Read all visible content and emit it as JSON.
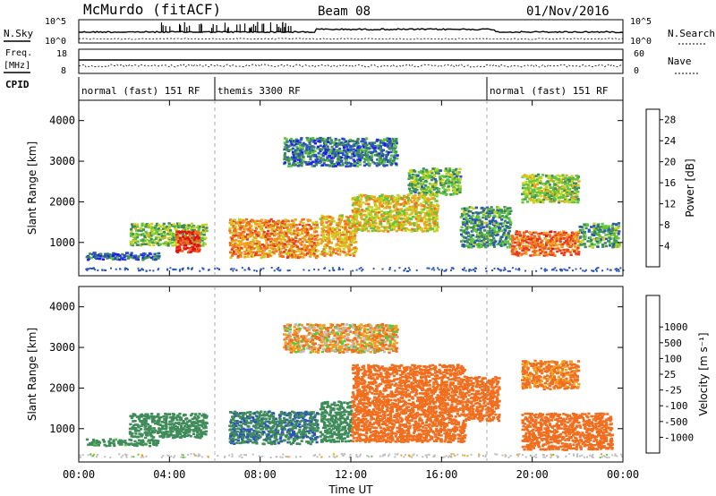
{
  "header": {
    "station": "McMurdo (fitACF)",
    "beam": "Beam 08",
    "date": "01/Nov/2016"
  },
  "strip_panels": {
    "nsky_label": "N.Sky",
    "nsky_ticks": [
      "10^5",
      "10^0"
    ],
    "nsearch_label": "N.Search",
    "nsearch_ticks": [
      "10^5",
      "10^0"
    ],
    "freq_label": [
      "Freq.",
      "[MHz]"
    ],
    "freq_ticks": [
      "18",
      "8"
    ],
    "nave_label": "Nave",
    "nave_ticks": [
      "60",
      "0"
    ],
    "cpid_label": "CPID",
    "cpid_segments": [
      {
        "label": "normal (fast) 151 RF",
        "start_hour": 0,
        "end_hour": 6
      },
      {
        "label": "themis 3300 RF",
        "start_hour": 6,
        "end_hour": 18
      },
      {
        "label": "normal (fast) 151 RF",
        "start_hour": 18,
        "end_hour": 24
      }
    ]
  },
  "colors": {
    "power": [
      "#1e1ef0",
      "#2c55b8",
      "#3f8c5a",
      "#5fc63c",
      "#c8d21e",
      "#f0a01e",
      "#f06e1e",
      "#e63c1e",
      "#e01010"
    ],
    "velocity": [
      "#e01010",
      "#e63c1e",
      "#f06e1e",
      "#f0a01e",
      "#c8d21e",
      "#bebebe",
      "#5fc63c",
      "#3f8c5a",
      "#2c55b8",
      "#1e1ef0"
    ]
  },
  "chart_data": [
    {
      "type": "heatmap",
      "panel": "power",
      "x_ticks": [
        "00:00",
        "04:00",
        "08:00",
        "12:00",
        "16:00",
        "20:00",
        "00:00"
      ],
      "xlim_hours": [
        0,
        24
      ],
      "ylabel": "Slant Range [km]",
      "ylim": [
        180,
        4500
      ],
      "y_ticks": [
        1000,
        2000,
        3000,
        4000
      ],
      "colorbar_label": "Power [dB]",
      "colorbar_ticks": [
        "4",
        "8",
        "12",
        "16",
        "20",
        "24",
        "28"
      ],
      "colorbar_range": [
        0,
        30
      ],
      "bands": [
        {
          "t0": 2.2,
          "t1": 5.6,
          "r0": 950,
          "r1": 1500,
          "v": 12
        },
        {
          "t0": 4.2,
          "t1": 5.3,
          "r0": 780,
          "r1": 1300,
          "v": 25
        },
        {
          "t0": 0.3,
          "t1": 3.5,
          "r0": 600,
          "r1": 770,
          "v": 6
        },
        {
          "t0": 6.6,
          "t1": 10.5,
          "r0": 650,
          "r1": 1600,
          "v": 20
        },
        {
          "t0": 10.6,
          "t1": 12.2,
          "r0": 700,
          "r1": 1700,
          "v": 18
        },
        {
          "t0": 12.0,
          "t1": 15.8,
          "r0": 1300,
          "r1": 2200,
          "v": 16
        },
        {
          "t0": 14.5,
          "t1": 16.8,
          "r0": 2200,
          "r1": 2850,
          "v": 11
        },
        {
          "t0": 16.8,
          "t1": 19.0,
          "r0": 900,
          "r1": 1900,
          "v": 9
        },
        {
          "t0": 19.0,
          "t1": 22.0,
          "r0": 700,
          "r1": 1300,
          "v": 22
        },
        {
          "t0": 22.0,
          "t1": 23.8,
          "r0": 900,
          "r1": 1500,
          "v": 10
        },
        {
          "t0": 9.0,
          "t1": 14.0,
          "r0": 2900,
          "r1": 3600,
          "v": 7
        },
        {
          "t0": 19.5,
          "t1": 22.0,
          "r0": 2000,
          "r1": 2700,
          "v": 13
        }
      ]
    },
    {
      "type": "heatmap",
      "panel": "velocity",
      "x_ticks": [
        "00:00",
        "04:00",
        "08:00",
        "12:00",
        "16:00",
        "20:00",
        "00:00"
      ],
      "xlim_hours": [
        0,
        24
      ],
      "xlabel": "Time UT",
      "ylabel": "Slant Range [km]",
      "ylim": [
        180,
        4500
      ],
      "y_ticks": [
        1000,
        2000,
        3000,
        4000
      ],
      "colorbar_label": "Velocity [m s⁻¹]",
      "colorbar_ticks": [
        "-1000",
        "-500",
        "-100",
        "-25",
        "25",
        "100",
        "500",
        "1000"
      ],
      "bands": [
        {
          "t0": 2.2,
          "t1": 5.6,
          "r0": 800,
          "r1": 1400,
          "v": 300
        },
        {
          "t0": 0.3,
          "t1": 3.5,
          "r0": 600,
          "r1": 770,
          "v": 200
        },
        {
          "t0": 6.6,
          "t1": 10.5,
          "r0": 650,
          "r1": 1450,
          "v": 450
        },
        {
          "t0": 10.6,
          "t1": 12.0,
          "r0": 700,
          "r1": 1700,
          "v": 350
        },
        {
          "t0": 12.0,
          "t1": 17.0,
          "r0": 700,
          "r1": 2600,
          "v": -300
        },
        {
          "t0": 17.0,
          "t1": 18.5,
          "r0": 1200,
          "r1": 2300,
          "v": -300
        },
        {
          "t0": 19.5,
          "t1": 23.5,
          "r0": 500,
          "r1": 1400,
          "v": -300
        },
        {
          "t0": 19.5,
          "t1": 22.0,
          "r0": 2000,
          "r1": 2700,
          "v": -150
        },
        {
          "t0": 9.0,
          "t1": 14.0,
          "r0": 2900,
          "r1": 3600,
          "v": -60
        }
      ]
    }
  ]
}
